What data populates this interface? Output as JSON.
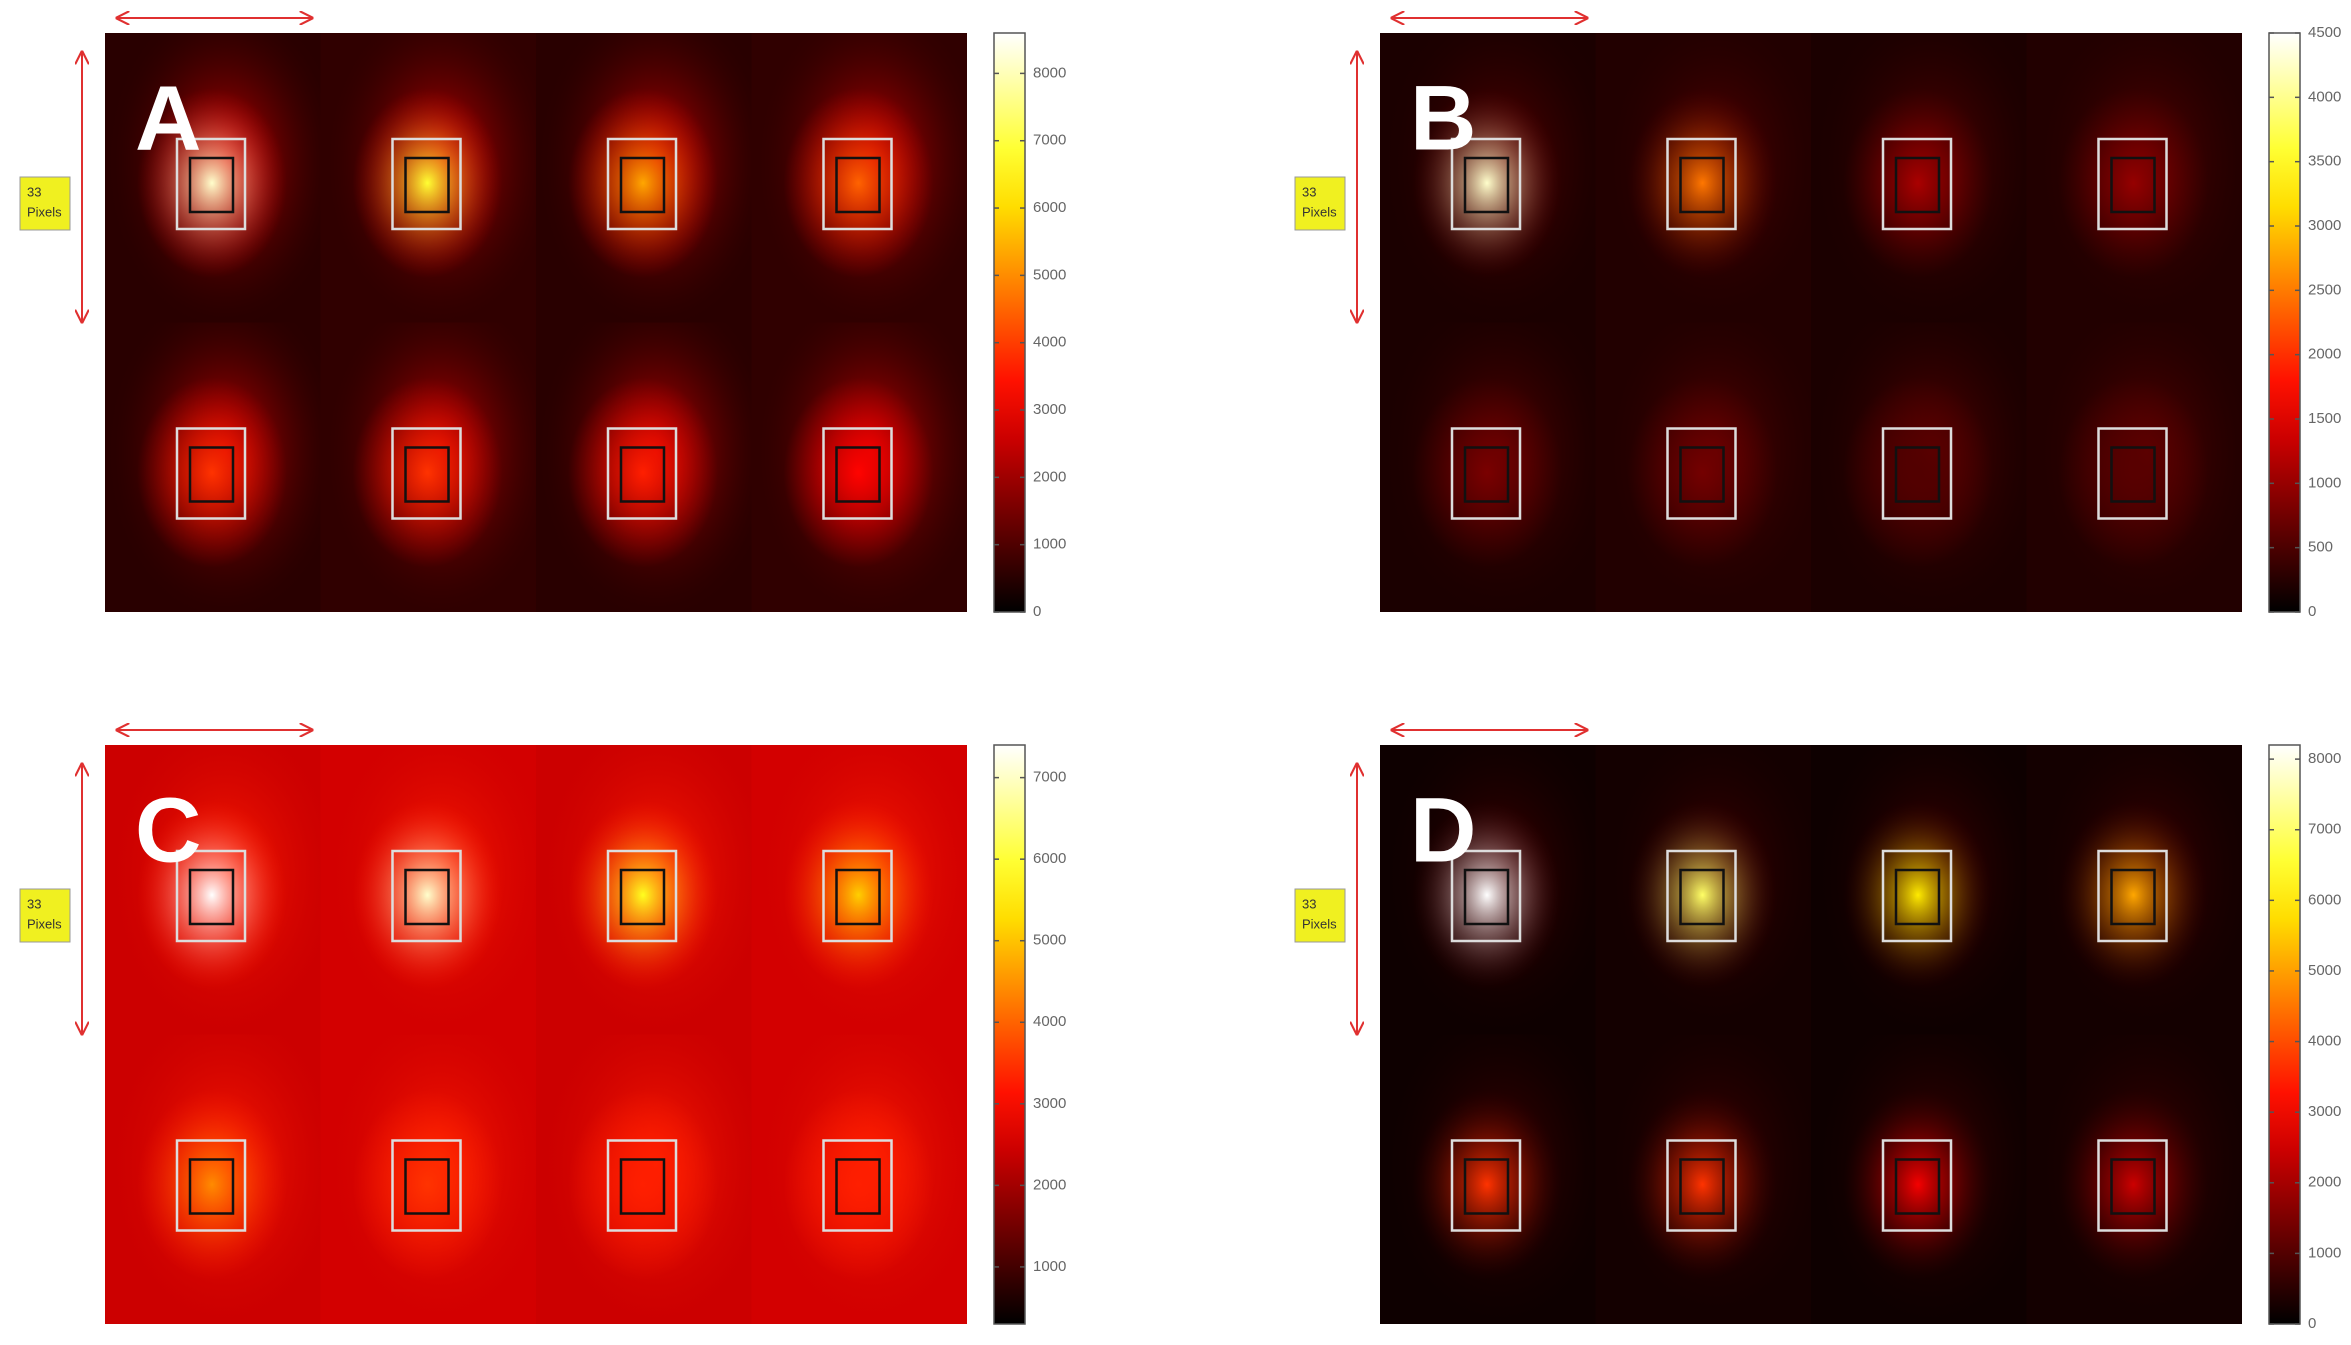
{
  "panels": [
    {
      "label": "A",
      "colorbar": {
        "lim": [
          0,
          8600
        ],
        "ticks": [
          0,
          1000,
          2000,
          3000,
          4000,
          5000,
          6000,
          7000,
          8000
        ]
      }
    },
    {
      "label": "B",
      "colorbar": {
        "lim": [
          0,
          4500
        ],
        "ticks": [
          0,
          500,
          1000,
          1500,
          2000,
          2500,
          3000,
          3500,
          4000,
          4500
        ]
      }
    },
    {
      "label": "C",
      "colorbar": {
        "lim": [
          300,
          7400
        ],
        "ticks": [
          1000,
          2000,
          3000,
          4000,
          5000,
          6000,
          7000
        ]
      }
    },
    {
      "label": "D",
      "colorbar": {
        "lim": [
          0,
          8200
        ],
        "ticks": [
          0,
          1000,
          2000,
          3000,
          4000,
          5000,
          6000,
          7000,
          8000
        ]
      }
    }
  ],
  "scale_label": [
    "33",
    "Pixels"
  ]
}
